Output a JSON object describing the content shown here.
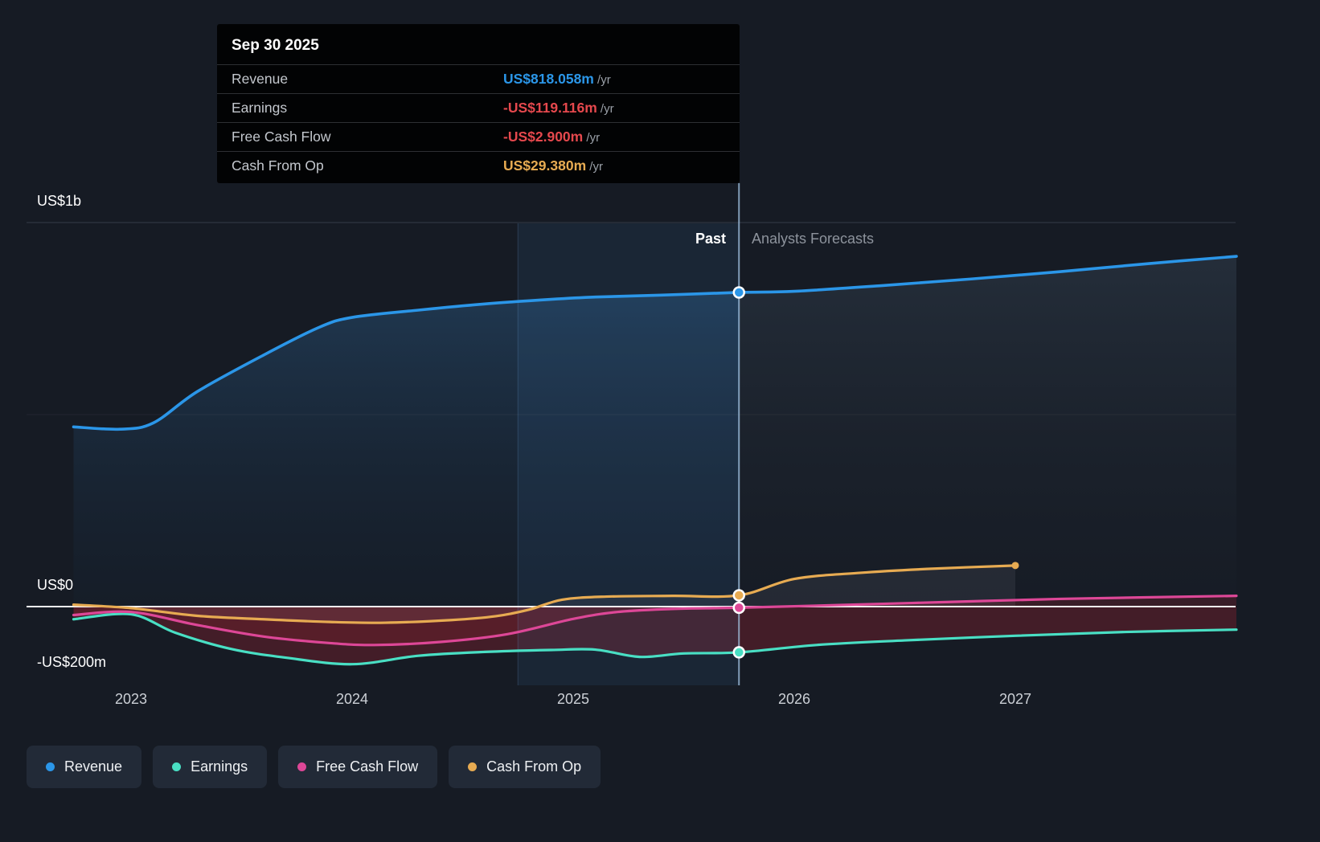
{
  "colors": {
    "background": "#161b24",
    "revenue": "#2b96e8",
    "earnings": "#49dfc4",
    "free_cash_flow": "#dd4797",
    "cash_from_op": "#e7ab52",
    "negative_value_text": "#e5484d",
    "zero_line": "#ffffff",
    "divider_line": "#a6c8e8"
  },
  "tooltip": {
    "date": "Sep 30 2025",
    "rows": [
      {
        "label": "Revenue",
        "value": "US$818.058m",
        "suffix": "/yr",
        "color": "#2b96e8"
      },
      {
        "label": "Earnings",
        "value": "-US$119.116m",
        "suffix": "/yr",
        "color": "#e5484d"
      },
      {
        "label": "Free Cash Flow",
        "value": "-US$2.900m",
        "suffix": "/yr",
        "color": "#e5484d"
      },
      {
        "label": "Cash From Op",
        "value": "US$29.380m",
        "suffix": "/yr",
        "color": "#e7ab52"
      }
    ]
  },
  "labels": {
    "past": "Past",
    "forecast": "Analysts Forecasts"
  },
  "y_axis": [
    {
      "text": "US$1b",
      "value": 1000
    },
    {
      "text": "US$0",
      "value": 0
    },
    {
      "text": "-US$200m",
      "value": -200
    }
  ],
  "x_axis": [
    "2023",
    "2024",
    "2025",
    "2026",
    "2027"
  ],
  "legend": [
    {
      "label": "Revenue",
      "color": "#2b96e8"
    },
    {
      "label": "Earnings",
      "color": "#49dfc4"
    },
    {
      "label": "Free Cash Flow",
      "color": "#dd4797"
    },
    {
      "label": "Cash From Op",
      "color": "#e7ab52"
    }
  ],
  "chart_data": {
    "type": "line",
    "x_unit": "year",
    "y_unit": "US$ millions",
    "ylim": [
      -205,
      1000
    ],
    "xlim": [
      2022.53,
      2028.0
    ],
    "divider_x": 2025.75,
    "divider_date": "Sep 30 2025",
    "highlight_range": [
      2024.75,
      2025.75
    ],
    "grid_values": [
      1000,
      500,
      0
    ],
    "series": [
      {
        "name": "Revenue",
        "color": "#2b96e8",
        "fill": "blue",
        "line_width": 3.6,
        "marker_at_divider": 818.058,
        "points": [
          [
            2022.74,
            468
          ],
          [
            2022.95,
            462
          ],
          [
            2023.1,
            478
          ],
          [
            2023.3,
            560
          ],
          [
            2023.6,
            655
          ],
          [
            2023.85,
            727
          ],
          [
            2024.0,
            753
          ],
          [
            2024.3,
            772
          ],
          [
            2024.6,
            788
          ],
          [
            2024.9,
            800
          ],
          [
            2025.1,
            806
          ],
          [
            2025.4,
            811
          ],
          [
            2025.75,
            818.058
          ],
          [
            2026.0,
            821
          ],
          [
            2026.4,
            836
          ],
          [
            2026.8,
            853
          ],
          [
            2027.2,
            872
          ],
          [
            2027.6,
            893
          ],
          [
            2028.0,
            912
          ]
        ]
      },
      {
        "name": "Earnings",
        "color": "#49dfc4",
        "fill": "negative-strong",
        "line_width": 3.2,
        "marker_at_divider": -119.116,
        "points": [
          [
            2022.74,
            -33
          ],
          [
            2023.0,
            -20
          ],
          [
            2023.2,
            -68
          ],
          [
            2023.45,
            -110
          ],
          [
            2023.7,
            -133
          ],
          [
            2024.0,
            -150
          ],
          [
            2024.3,
            -128
          ],
          [
            2024.6,
            -118
          ],
          [
            2024.9,
            -113
          ],
          [
            2025.1,
            -112
          ],
          [
            2025.3,
            -131
          ],
          [
            2025.5,
            -122
          ],
          [
            2025.75,
            -119.116
          ],
          [
            2026.1,
            -100
          ],
          [
            2026.5,
            -88
          ],
          [
            2027.0,
            -76
          ],
          [
            2027.5,
            -66
          ],
          [
            2028.0,
            -60
          ]
        ]
      },
      {
        "name": "Free Cash Flow",
        "color": "#dd4797",
        "fill": "negative-soft",
        "line_width": 3.2,
        "marker_at_divider": -2.9,
        "points": [
          [
            2022.74,
            -22
          ],
          [
            2023.0,
            -14
          ],
          [
            2023.3,
            -48
          ],
          [
            2023.6,
            -78
          ],
          [
            2023.9,
            -95
          ],
          [
            2024.1,
            -100
          ],
          [
            2024.4,
            -92
          ],
          [
            2024.7,
            -72
          ],
          [
            2025.0,
            -32
          ],
          [
            2025.2,
            -14
          ],
          [
            2025.45,
            -6
          ],
          [
            2025.75,
            -2.9
          ],
          [
            2026.2,
            4
          ],
          [
            2026.7,
            12
          ],
          [
            2027.2,
            20
          ],
          [
            2028.0,
            28
          ]
        ]
      },
      {
        "name": "Cash From Op",
        "color": "#e7ab52",
        "fill": "neutral",
        "line_width": 3.2,
        "marker_at_divider": 29.38,
        "end_dot": true,
        "points": [
          [
            2022.74,
            5
          ],
          [
            2023.0,
            -4
          ],
          [
            2023.3,
            -24
          ],
          [
            2023.6,
            -33
          ],
          [
            2023.9,
            -40
          ],
          [
            2024.15,
            -42
          ],
          [
            2024.45,
            -35
          ],
          [
            2024.65,
            -25
          ],
          [
            2024.8,
            -8
          ],
          [
            2024.95,
            18
          ],
          [
            2025.15,
            26
          ],
          [
            2025.45,
            28
          ],
          [
            2025.75,
            29.38
          ],
          [
            2026.0,
            72
          ],
          [
            2026.3,
            88
          ],
          [
            2026.6,
            98
          ],
          [
            2027.0,
            107
          ]
        ]
      }
    ]
  }
}
